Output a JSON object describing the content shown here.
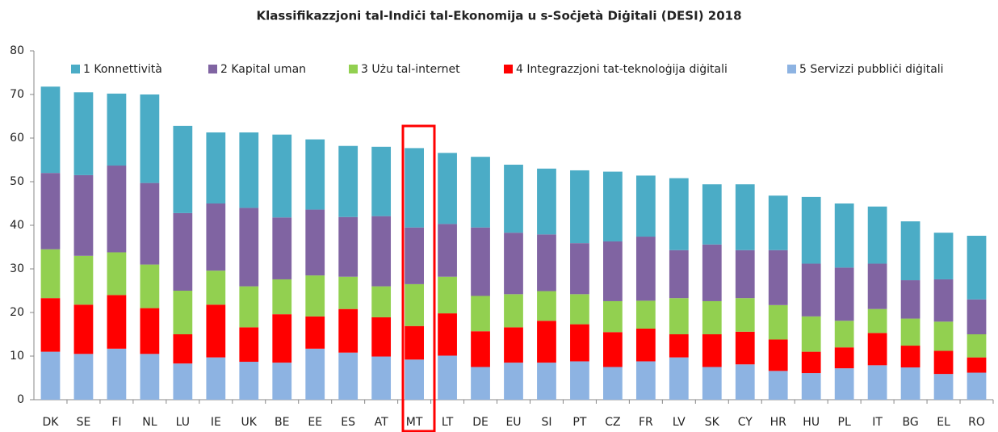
{
  "chart_data": {
    "type": "stacked_bar",
    "title": "Klassifikazzjoni tal-Indiċi tal-Ekonomija u s-Soċjetà Diġitali (DESI) 2018",
    "categories": [
      "DK",
      "SE",
      "FI",
      "NL",
      "LU",
      "IE",
      "UK",
      "BE",
      "EE",
      "ES",
      "AT",
      "MT",
      "LT",
      "DE",
      "EU",
      "SI",
      "PT",
      "CZ",
      "FR",
      "LV",
      "SK",
      "CY",
      "HR",
      "HU",
      "PL",
      "IT",
      "BG",
      "EL",
      "RO"
    ],
    "series": [
      {
        "name": "1 Konnettività",
        "color": "#4bacc6",
        "values": [
          19.8,
          19,
          16.5,
          20.3,
          20,
          16.3,
          17.3,
          19,
          16.1,
          16.3,
          15.9,
          18.2,
          16.3,
          16.2,
          15.6,
          15.1,
          16.7,
          16,
          14,
          16.5,
          13.8,
          15.1,
          12.5,
          15.3,
          14.7,
          13.1,
          13.5,
          10.7,
          14.6
        ]
      },
      {
        "name": "2 Kapital uman",
        "color": "#8064a2",
        "values": [
          17.5,
          18.5,
          19.9,
          18.7,
          17.8,
          15.4,
          18,
          14.2,
          15.1,
          13.7,
          16.1,
          13,
          12.1,
          15.7,
          14.1,
          13,
          11.7,
          13.7,
          14.7,
          11,
          13,
          11,
          12.6,
          12.1,
          12.2,
          10.4,
          8.8,
          9.7,
          8
        ]
      },
      {
        "name": "3 Użu tal-internet",
        "color": "#92d050",
        "values": [
          11.2,
          11.2,
          9.8,
          10,
          10,
          7.8,
          9.4,
          8,
          9.4,
          7.4,
          7.1,
          9.6,
          8.4,
          8.1,
          7.6,
          6.8,
          6.9,
          7.1,
          6.4,
          8.3,
          7.6,
          7.7,
          7.9,
          8.1,
          6.1,
          5.5,
          6.2,
          6.7,
          5.3
        ]
      },
      {
        "name": "4 Integrazzjoni tat-teknoloġija diġitali",
        "color": "#ff0000",
        "values": [
          12.3,
          11.3,
          12.3,
          10.5,
          6.7,
          12.1,
          7.9,
          11.1,
          7.4,
          10,
          9,
          7.7,
          9.7,
          8.2,
          8.1,
          9.6,
          8.5,
          8,
          7.5,
          5.3,
          7.5,
          7.5,
          7.2,
          4.9,
          4.8,
          7.4,
          5,
          5.3,
          3.5
        ]
      },
      {
        "name": "5 Servizzi pubbliċi diġitali",
        "color": "#8db3e2",
        "values": [
          11,
          10.5,
          11.7,
          10.5,
          8.3,
          9.7,
          8.7,
          8.5,
          11.7,
          10.8,
          9.9,
          9.2,
          10.1,
          7.5,
          8.5,
          8.5,
          8.8,
          7.5,
          8.8,
          9.7,
          7.5,
          8.1,
          6.6,
          6.1,
          7.2,
          7.9,
          7.4,
          5.9,
          6.2
        ]
      }
    ],
    "ylim": [
      0,
      80
    ],
    "yticks": [
      0,
      10,
      20,
      30,
      40,
      50,
      60,
      70,
      80
    ],
    "grid": false,
    "legend": "top"
  }
}
